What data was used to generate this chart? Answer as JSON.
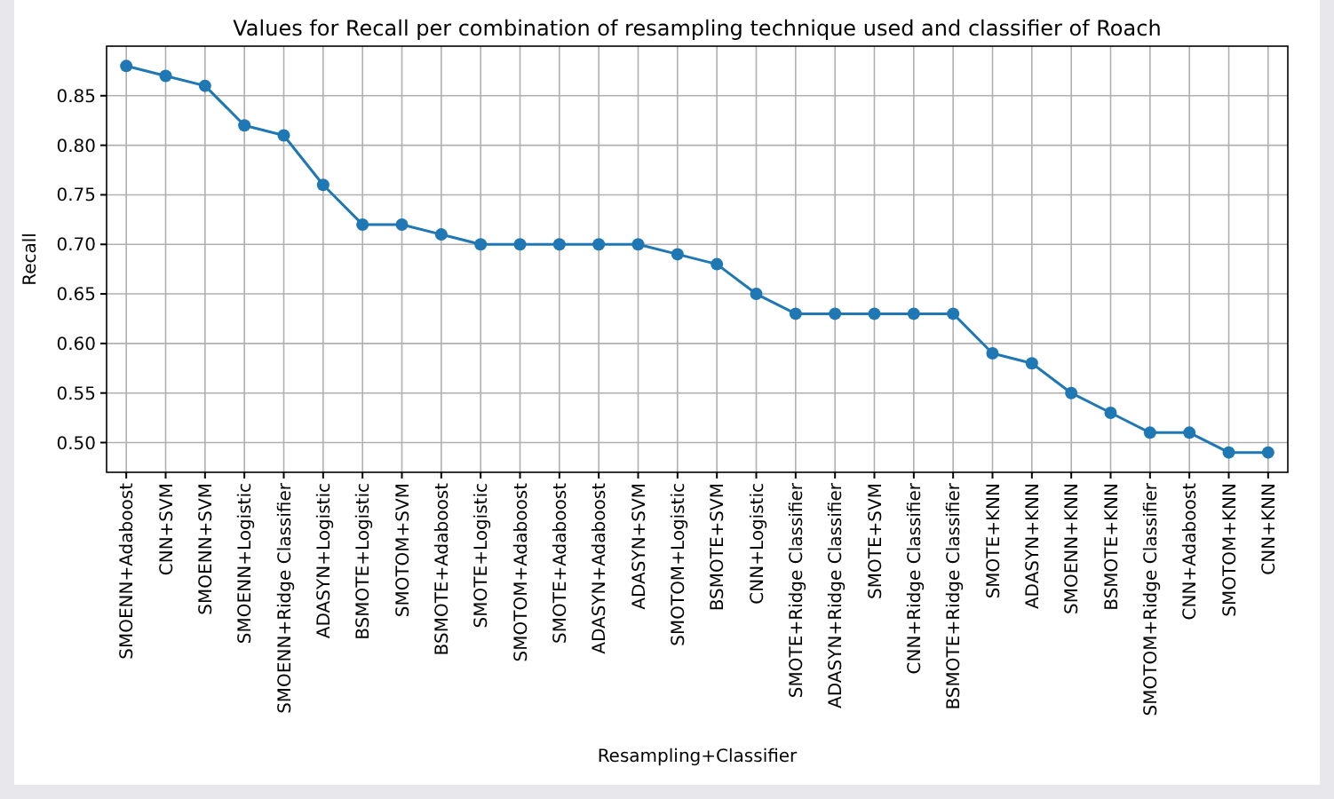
{
  "chart_data": {
    "type": "line",
    "title": "Values for Recall per combination of resampling technique used and classifier of Roach",
    "xlabel": "Resampling+Classifier",
    "ylabel": "Recall",
    "categories": [
      "SMOENN+Adaboost",
      "CNN+SVM",
      "SMOENN+SVM",
      "SMOENN+Logistic",
      "SMOENN+Ridge Classifier",
      "ADASYN+Logistic",
      "BSMOTE+Logistic",
      "SMOTOM+SVM",
      "BSMOTE+Adaboost",
      "SMOTE+Logistic",
      "SMOTOM+Adaboost",
      "SMOTE+Adaboost",
      "ADASYN+Adaboost",
      "ADASYN+SVM",
      "SMOTOM+Logistic",
      "BSMOTE+SVM",
      "CNN+Logistic",
      "SMOTE+Ridge Classifier",
      "ADASYN+Ridge Classifier",
      "SMOTE+SVM",
      "CNN+Ridge Classifier",
      "BSMOTE+Ridge Classifier",
      "SMOTE+KNN",
      "ADASYN+KNN",
      "SMOENN+KNN",
      "BSMOTE+KNN",
      "SMOTOM+Ridge Classifier",
      "CNN+Adaboost",
      "SMOTOM+KNN",
      "CNN+KNN"
    ],
    "series": [
      {
        "color": "#1f77b4",
        "values": [
          0.88,
          0.87,
          0.86,
          0.82,
          0.81,
          0.76,
          0.72,
          0.72,
          0.71,
          0.7,
          0.7,
          0.7,
          0.7,
          0.7,
          0.69,
          0.68,
          0.65,
          0.63,
          0.63,
          0.63,
          0.63,
          0.63,
          0.59,
          0.58,
          0.55,
          0.53,
          0.51,
          0.51,
          0.49,
          0.49
        ]
      }
    ],
    "ylim": [
      0.47,
      0.9
    ],
    "yticks": [
      {
        "value": 0.5,
        "label": "0.50"
      },
      {
        "value": 0.55,
        "label": "0.55"
      },
      {
        "value": 0.6,
        "label": "0.60"
      },
      {
        "value": 0.65,
        "label": "0.65"
      },
      {
        "value": 0.7,
        "label": "0.70"
      },
      {
        "value": 0.75,
        "label": "0.75"
      },
      {
        "value": 0.8,
        "label": "0.80"
      },
      {
        "value": 0.85,
        "label": "0.85"
      }
    ],
    "grid": true,
    "marker": "circle",
    "line_style": "solid"
  }
}
